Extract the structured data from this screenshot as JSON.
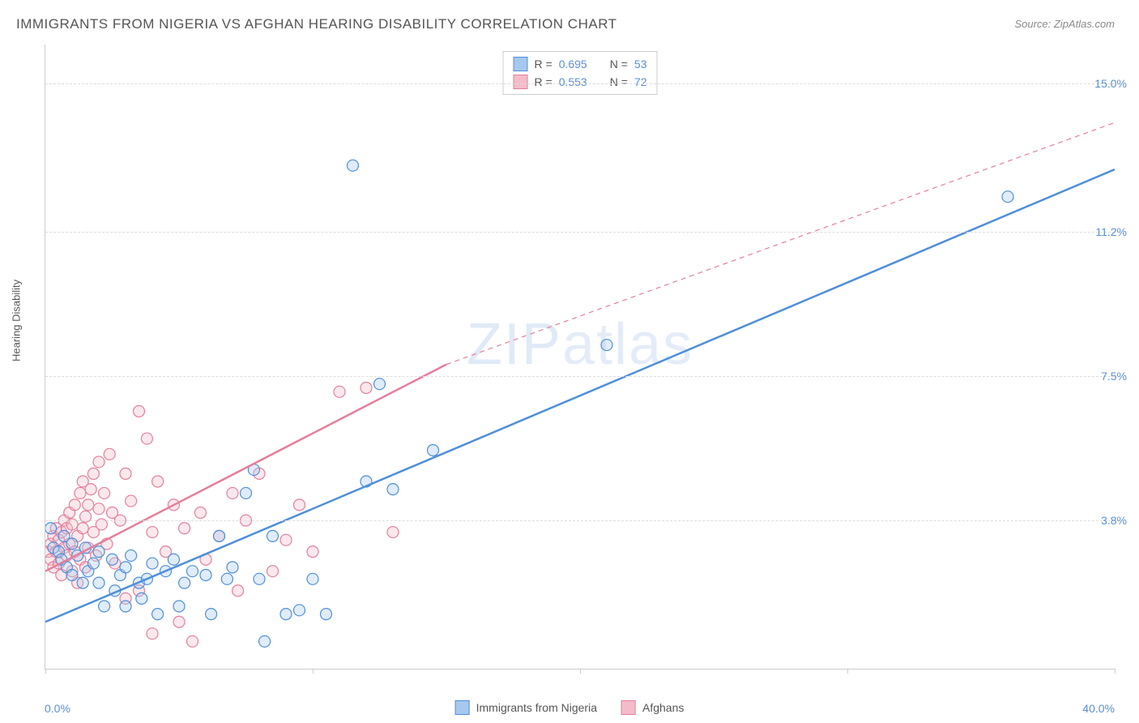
{
  "title": "IMMIGRANTS FROM NIGERIA VS AFGHAN HEARING DISABILITY CORRELATION CHART",
  "source": "Source: ZipAtlas.com",
  "watermark": "ZIPatlas",
  "y_axis_label": "Hearing Disability",
  "chart": {
    "type": "scatter",
    "background_color": "#ffffff",
    "grid_color": "#dddddd",
    "axis_color": "#cccccc",
    "xlim": [
      0,
      40
    ],
    "ylim": [
      0,
      16
    ],
    "x_ticks": [
      0,
      10,
      20,
      30,
      40
    ],
    "x_tick_labels_shown": {
      "0": "0.0%",
      "40": "40.0%"
    },
    "y_ticks": [
      3.8,
      7.5,
      11.2,
      15.0
    ],
    "y_tick_labels": [
      "3.8%",
      "7.5%",
      "11.2%",
      "15.0%"
    ],
    "marker_radius": 7,
    "marker_fill_opacity": 0.35,
    "marker_stroke_width": 1.2,
    "trend_line_width": 2.5,
    "trend_dash_pattern": "6,5",
    "series": [
      {
        "id": "nigeria",
        "label": "Immigrants from Nigeria",
        "color_stroke": "#4f8fd9",
        "color_fill": "#a7c8ee",
        "R": 0.695,
        "N": 53,
        "trend_solid": {
          "x1": 0,
          "y1": 1.2,
          "x2": 40,
          "y2": 12.8
        },
        "trend_dash": null,
        "points": [
          [
            0.2,
            3.6
          ],
          [
            0.3,
            3.1
          ],
          [
            0.5,
            3.0
          ],
          [
            0.6,
            2.8
          ],
          [
            0.7,
            3.4
          ],
          [
            0.8,
            2.6
          ],
          [
            1.0,
            3.2
          ],
          [
            1.0,
            2.4
          ],
          [
            1.2,
            2.9
          ],
          [
            1.4,
            2.2
          ],
          [
            1.5,
            3.1
          ],
          [
            1.6,
            2.5
          ],
          [
            1.8,
            2.7
          ],
          [
            2.0,
            3.0
          ],
          [
            2.0,
            2.2
          ],
          [
            2.2,
            1.6
          ],
          [
            2.5,
            2.8
          ],
          [
            2.6,
            2.0
          ],
          [
            2.8,
            2.4
          ],
          [
            3.0,
            1.6
          ],
          [
            3.0,
            2.6
          ],
          [
            3.2,
            2.9
          ],
          [
            3.5,
            2.2
          ],
          [
            3.6,
            1.8
          ],
          [
            3.8,
            2.3
          ],
          [
            4.0,
            2.7
          ],
          [
            4.2,
            1.4
          ],
          [
            4.5,
            2.5
          ],
          [
            4.8,
            2.8
          ],
          [
            5.0,
            1.6
          ],
          [
            5.2,
            2.2
          ],
          [
            5.5,
            2.5
          ],
          [
            6.0,
            2.4
          ],
          [
            6.2,
            1.4
          ],
          [
            6.5,
            3.4
          ],
          [
            6.8,
            2.3
          ],
          [
            7.0,
            2.6
          ],
          [
            7.5,
            4.5
          ],
          [
            7.8,
            5.1
          ],
          [
            8.0,
            2.3
          ],
          [
            8.2,
            0.7
          ],
          [
            8.5,
            3.4
          ],
          [
            9.0,
            1.4
          ],
          [
            9.5,
            1.5
          ],
          [
            10.0,
            2.3
          ],
          [
            10.5,
            1.4
          ],
          [
            12.5,
            7.3
          ],
          [
            13.0,
            4.6
          ],
          [
            14.5,
            5.6
          ],
          [
            11.5,
            12.9
          ],
          [
            12.0,
            4.8
          ],
          [
            21.0,
            8.3
          ],
          [
            36.0,
            12.1
          ]
        ]
      },
      {
        "id": "afghans",
        "label": "Afghans",
        "color_stroke": "#e57f9a",
        "color_fill": "#f4bccb",
        "R": 0.553,
        "N": 72,
        "trend_solid": {
          "x1": 0,
          "y1": 2.5,
          "x2": 15,
          "y2": 7.8
        },
        "trend_dash": {
          "x1": 15,
          "y1": 7.8,
          "x2": 40,
          "y2": 14.0
        },
        "points": [
          [
            0.1,
            3.0
          ],
          [
            0.2,
            3.2
          ],
          [
            0.2,
            2.8
          ],
          [
            0.3,
            3.4
          ],
          [
            0.3,
            2.6
          ],
          [
            0.4,
            3.6
          ],
          [
            0.4,
            3.0
          ],
          [
            0.5,
            3.3
          ],
          [
            0.5,
            2.7
          ],
          [
            0.6,
            3.5
          ],
          [
            0.6,
            2.4
          ],
          [
            0.7,
            3.8
          ],
          [
            0.7,
            3.1
          ],
          [
            0.8,
            2.9
          ],
          [
            0.8,
            3.6
          ],
          [
            0.9,
            4.0
          ],
          [
            0.9,
            3.2
          ],
          [
            1.0,
            2.5
          ],
          [
            1.0,
            3.7
          ],
          [
            1.1,
            4.2
          ],
          [
            1.1,
            3.0
          ],
          [
            1.2,
            2.2
          ],
          [
            1.2,
            3.4
          ],
          [
            1.3,
            4.5
          ],
          [
            1.3,
            2.8
          ],
          [
            1.4,
            3.6
          ],
          [
            1.4,
            4.8
          ],
          [
            1.5,
            3.9
          ],
          [
            1.5,
            2.6
          ],
          [
            1.6,
            4.2
          ],
          [
            1.6,
            3.1
          ],
          [
            1.7,
            4.6
          ],
          [
            1.8,
            5.0
          ],
          [
            1.8,
            3.5
          ],
          [
            1.9,
            2.9
          ],
          [
            2.0,
            4.1
          ],
          [
            2.0,
            5.3
          ],
          [
            2.1,
            3.7
          ],
          [
            2.2,
            4.5
          ],
          [
            2.3,
            3.2
          ],
          [
            2.4,
            5.5
          ],
          [
            2.5,
            4.0
          ],
          [
            2.6,
            2.7
          ],
          [
            2.8,
            3.8
          ],
          [
            3.0,
            5.0
          ],
          [
            3.0,
            1.8
          ],
          [
            3.2,
            4.3
          ],
          [
            3.5,
            6.6
          ],
          [
            3.5,
            2.0
          ],
          [
            3.8,
            5.9
          ],
          [
            4.0,
            3.5
          ],
          [
            4.0,
            0.9
          ],
          [
            4.2,
            4.8
          ],
          [
            4.5,
            3.0
          ],
          [
            4.8,
            4.2
          ],
          [
            5.0,
            1.2
          ],
          [
            5.2,
            3.6
          ],
          [
            5.5,
            0.7
          ],
          [
            5.8,
            4.0
          ],
          [
            6.0,
            2.8
          ],
          [
            6.5,
            3.4
          ],
          [
            7.0,
            4.5
          ],
          [
            7.2,
            2.0
          ],
          [
            7.5,
            3.8
          ],
          [
            8.0,
            5.0
          ],
          [
            8.5,
            2.5
          ],
          [
            9.0,
            3.3
          ],
          [
            9.5,
            4.2
          ],
          [
            10.0,
            3.0
          ],
          [
            11.0,
            7.1
          ],
          [
            12.0,
            7.2
          ],
          [
            13.0,
            3.5
          ]
        ]
      }
    ]
  },
  "legend_top": {
    "r_label": "R =",
    "n_label": "N ="
  }
}
